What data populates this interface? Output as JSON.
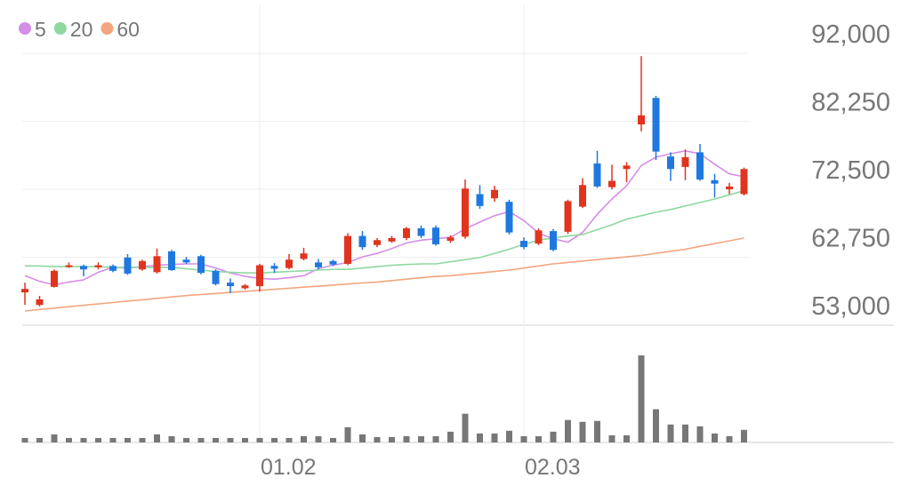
{
  "chart_data": {
    "type": "candlestick",
    "categories": [
      null,
      null,
      null,
      null,
      null,
      null,
      null,
      null,
      null,
      null,
      null,
      null,
      null,
      null,
      null,
      null,
      "01.02",
      null,
      null,
      null,
      null,
      null,
      null,
      null,
      null,
      null,
      null,
      null,
      null,
      null,
      null,
      null,
      null,
      null,
      "02.03",
      null,
      null,
      null,
      null,
      null,
      null,
      null,
      null,
      null,
      null,
      null,
      null,
      null,
      null,
      null
    ],
    "open": [
      57700,
      55900,
      58500,
      61400,
      61500,
      61300,
      61500,
      62700,
      61000,
      60600,
      63600,
      62400,
      62900,
      60800,
      59100,
      58300,
      58600,
      61500,
      61200,
      62500,
      62000,
      62200,
      61800,
      65800,
      64500,
      65000,
      65500,
      66900,
      67000,
      65100,
      65700,
      71800,
      71200,
      70700,
      65100,
      64700,
      66500,
      66400,
      70000,
      76200,
      72800,
      75400,
      81800,
      85600,
      77200,
      75700,
      77800,
      73800,
      72500,
      71800
    ],
    "high": [
      59100,
      57200,
      61000,
      62000,
      61700,
      62000,
      61700,
      63200,
      62400,
      64000,
      63800,
      62800,
      63100,
      61000,
      59700,
      58900,
      61800,
      61900,
      63200,
      64100,
      62500,
      62400,
      66200,
      66500,
      65500,
      65800,
      67100,
      67300,
      67300,
      65900,
      73900,
      73100,
      73000,
      71000,
      65600,
      66900,
      66800,
      71000,
      74100,
      78000,
      76000,
      76400,
      91600,
      85900,
      77800,
      78200,
      79000,
      74700,
      73400,
      75600
    ],
    "low": [
      55900,
      55700,
      58400,
      61200,
      60000,
      61000,
      60600,
      60200,
      60800,
      60400,
      60800,
      61800,
      60300,
      58700,
      57600,
      58100,
      57800,
      60500,
      61000,
      62300,
      61000,
      61500,
      61600,
      63800,
      64200,
      64800,
      65200,
      65500,
      64400,
      64800,
      65400,
      69700,
      70700,
      66000,
      63900,
      64500,
      63600,
      66100,
      69800,
      72700,
      72500,
      73500,
      80800,
      76700,
      73700,
      73800,
      73700,
      71300,
      71800,
      71600
    ],
    "close": [
      58200,
      56700,
      60800,
      61600,
      61000,
      61600,
      60800,
      60400,
      62200,
      62900,
      60900,
      62000,
      60500,
      58900,
      58600,
      58700,
      61600,
      61100,
      62400,
      63300,
      61300,
      61700,
      65800,
      64200,
      65200,
      65500,
      66900,
      65800,
      64600,
      65600,
      72600,
      70100,
      72400,
      66300,
      64200,
      66600,
      63800,
      70800,
      73100,
      72900,
      73700,
      75900,
      83100,
      77900,
      75400,
      77100,
      73900,
      73300,
      72900,
      75400
    ],
    "up_color": "#e0341f",
    "down_color": "#1f78e0",
    "series": [
      {
        "name": "5",
        "color": "#d58ee8",
        "values": [
          60100,
          59300,
          58800,
          59200,
          59500,
          60600,
          61300,
          61200,
          61400,
          61600,
          61700,
          61800,
          61800,
          61200,
          60500,
          60000,
          59700,
          59600,
          59800,
          60100,
          61100,
          61600,
          62000,
          62800,
          63300,
          64000,
          64800,
          65200,
          65400,
          65600,
          66800,
          67800,
          68700,
          69300,
          68000,
          66200,
          65400,
          64900,
          66300,
          68900,
          71100,
          73000,
          75900,
          77100,
          77600,
          78000,
          77600,
          76100,
          74700,
          74300
        ]
      },
      {
        "name": "20",
        "color": "#8fd8a0",
        "values": [
          61500,
          61500,
          61400,
          61400,
          61400,
          61400,
          61300,
          61300,
          61300,
          61300,
          61300,
          61100,
          60900,
          60700,
          60600,
          60500,
          60500,
          60600,
          60700,
          60800,
          60900,
          61000,
          61000,
          61200,
          61400,
          61600,
          61700,
          61800,
          61800,
          62100,
          62400,
          62700,
          63300,
          63900,
          64600,
          65200,
          65500,
          65800,
          66000,
          66700,
          67400,
          68200,
          68700,
          69200,
          69600,
          70100,
          70600,
          71100,
          71700,
          72300
        ]
      },
      {
        "name": "60",
        "color": "#f2a57e",
        "values": [
          55040,
          55250,
          55450,
          55650,
          55850,
          56050,
          56250,
          56450,
          56650,
          56850,
          57050,
          57250,
          57400,
          57550,
          57700,
          57850,
          58000,
          58150,
          58300,
          58450,
          58600,
          58750,
          58900,
          59050,
          59200,
          59400,
          59600,
          59800,
          60000,
          60100,
          60300,
          60500,
          60700,
          60900,
          61200,
          61500,
          61800,
          62000,
          62200,
          62400,
          62600,
          62800,
          63000,
          63300,
          63600,
          63900,
          64300,
          64700,
          65100,
          65500
        ]
      }
    ],
    "volume": [
      5,
      5,
      9,
      5,
      5,
      5,
      5,
      5,
      5,
      9,
      7,
      5,
      5,
      5,
      5,
      5,
      5,
      5,
      5,
      7,
      7,
      5,
      17,
      9,
      6,
      6,
      7,
      7,
      7,
      12,
      32,
      10,
      10,
      13,
      7,
      7,
      12,
      25,
      23,
      24,
      8,
      8,
      97,
      37,
      20,
      20,
      18,
      10,
      7,
      14
    ],
    "volume_color": "#777777",
    "ylim": [
      53000,
      92000
    ],
    "yticks": [
      {
        "value": 53000,
        "label": "53,000"
      },
      {
        "value": 62750,
        "label": "62,750"
      },
      {
        "value": 72500,
        "label": "72,500"
      },
      {
        "value": 82250,
        "label": "82,250"
      },
      {
        "value": 92000,
        "label": "92,000"
      }
    ],
    "grid": true
  }
}
